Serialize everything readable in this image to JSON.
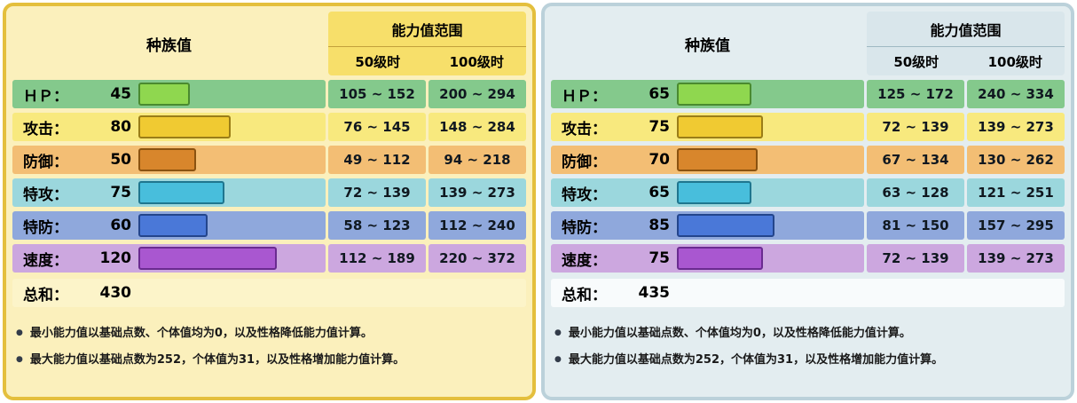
{
  "bar_scale_max": 158,
  "stat_colors": {
    "hp": {
      "row": "#84C98C",
      "bar": "#8FD74F",
      "border": "#4A8A2F"
    },
    "attack": {
      "row": "#F8E97E",
      "bar": "#F0CA32",
      "border": "#9A7D17"
    },
    "defense": {
      "row": "#F3BE74",
      "bar": "#D8862C",
      "border": "#8A5210"
    },
    "spatk": {
      "row": "#9BD7DD",
      "bar": "#48BEDC",
      "border": "#1F768F"
    },
    "spdef": {
      "row": "#8FA8DC",
      "bar": "#4A78D8",
      "border": "#23458C"
    },
    "speed": {
      "row": "#CCA7DF",
      "bar": "#A957D0",
      "border": "#6A2B90"
    }
  },
  "panels": [
    {
      "theme": {
        "bg": "#FBF0BC",
        "border": "#E4BF3D",
        "header_bg": "#F7DF6A",
        "divider": "#C2A13C",
        "total_bg": "#FCF4C9",
        "note_color": "#1A1A1A",
        "bullet_color": "#333C4A"
      },
      "headers": {
        "base": "种族值",
        "range": "能力值范围",
        "lv50": "50级时",
        "lv100": "100级时"
      },
      "stats": [
        {
          "label": "ＨＰ：",
          "value": 45,
          "color": "hp",
          "lv50": "105 ~ 152",
          "lv100": "200 ~ 294"
        },
        {
          "label": "攻击：",
          "value": 80,
          "color": "attack",
          "lv50": "76 ~ 145",
          "lv100": "148 ~ 284"
        },
        {
          "label": "防御：",
          "value": 50,
          "color": "defense",
          "lv50": "49 ~ 112",
          "lv100": "94 ~ 218"
        },
        {
          "label": "特攻：",
          "value": 75,
          "color": "spatk",
          "lv50": "72 ~ 139",
          "lv100": "139 ~ 273"
        },
        {
          "label": "特防：",
          "value": 60,
          "color": "spdef",
          "lv50": "58 ~ 123",
          "lv100": "112 ~ 240"
        },
        {
          "label": "速度：",
          "value": 120,
          "color": "speed",
          "lv50": "112 ~ 189",
          "lv100": "220 ~ 372"
        }
      ],
      "total": {
        "label": "总和：",
        "value": "430"
      },
      "notes": [
        "最小能力值以基础点数、个体值均为0，以及性格降低能力值计算。",
        "最大能力值以基础点数为252，个体值为31，以及性格增加能力值计算。"
      ]
    },
    {
      "theme": {
        "bg": "#E3EDF0",
        "border": "#BBD1DA",
        "header_bg": "#D9E6EB",
        "divider": "#9FB9C3",
        "total_bg": "#F8FBFC",
        "note_color": "#1A1A1A",
        "bullet_color": "#333C4A"
      },
      "headers": {
        "base": "种族值",
        "range": "能力值范围",
        "lv50": "50级时",
        "lv100": "100级时"
      },
      "stats": [
        {
          "label": "ＨＰ：",
          "value": 65,
          "color": "hp",
          "lv50": "125 ~ 172",
          "lv100": "240 ~ 334"
        },
        {
          "label": "攻击：",
          "value": 75,
          "color": "attack",
          "lv50": "72 ~ 139",
          "lv100": "139 ~ 273"
        },
        {
          "label": "防御：",
          "value": 70,
          "color": "defense",
          "lv50": "67 ~ 134",
          "lv100": "130 ~ 262"
        },
        {
          "label": "特攻：",
          "value": 65,
          "color": "spatk",
          "lv50": "63 ~ 128",
          "lv100": "121 ~ 251"
        },
        {
          "label": "特防：",
          "value": 85,
          "color": "spdef",
          "lv50": "81 ~ 150",
          "lv100": "157 ~ 295"
        },
        {
          "label": "速度：",
          "value": 75,
          "color": "speed",
          "lv50": "72 ~ 139",
          "lv100": "139 ~ 273"
        }
      ],
      "total": {
        "label": "总和：",
        "value": "435"
      },
      "notes": [
        "最小能力值以基础点数、个体值均为0，以及性格降低能力值计算。",
        "最大能力值以基础点数为252，个体值为31，以及性格增加能力值计算。"
      ]
    }
  ],
  "chart_data": [
    {
      "type": "bar",
      "orientation": "horizontal",
      "title": "种族值",
      "categories": [
        "ＨＰ",
        "攻击",
        "防御",
        "特攻",
        "特防",
        "速度"
      ],
      "values": [
        45,
        80,
        50,
        75,
        60,
        120
      ],
      "total": 430,
      "xlim": [
        0,
        160
      ],
      "range_columns": [
        "50级时",
        "100级时"
      ],
      "ranges_lv50": [
        "105 ~ 152",
        "76 ~ 145",
        "49 ~ 112",
        "72 ~ 139",
        "58 ~ 123",
        "112 ~ 189"
      ],
      "ranges_lv100": [
        "200 ~ 294",
        "148 ~ 284",
        "94 ~ 218",
        "139 ~ 273",
        "112 ~ 240",
        "220 ~ 372"
      ]
    },
    {
      "type": "bar",
      "orientation": "horizontal",
      "title": "种族值",
      "categories": [
        "ＨＰ",
        "攻击",
        "防御",
        "特攻",
        "特防",
        "速度"
      ],
      "values": [
        65,
        75,
        70,
        65,
        85,
        75
      ],
      "total": 435,
      "xlim": [
        0,
        160
      ],
      "range_columns": [
        "50级时",
        "100级时"
      ],
      "ranges_lv50": [
        "125 ~ 172",
        "72 ~ 139",
        "67 ~ 134",
        "63 ~ 128",
        "81 ~ 150",
        "72 ~ 139"
      ],
      "ranges_lv100": [
        "240 ~ 334",
        "139 ~ 273",
        "130 ~ 262",
        "121 ~ 251",
        "157 ~ 295",
        "139 ~ 273"
      ]
    }
  ]
}
